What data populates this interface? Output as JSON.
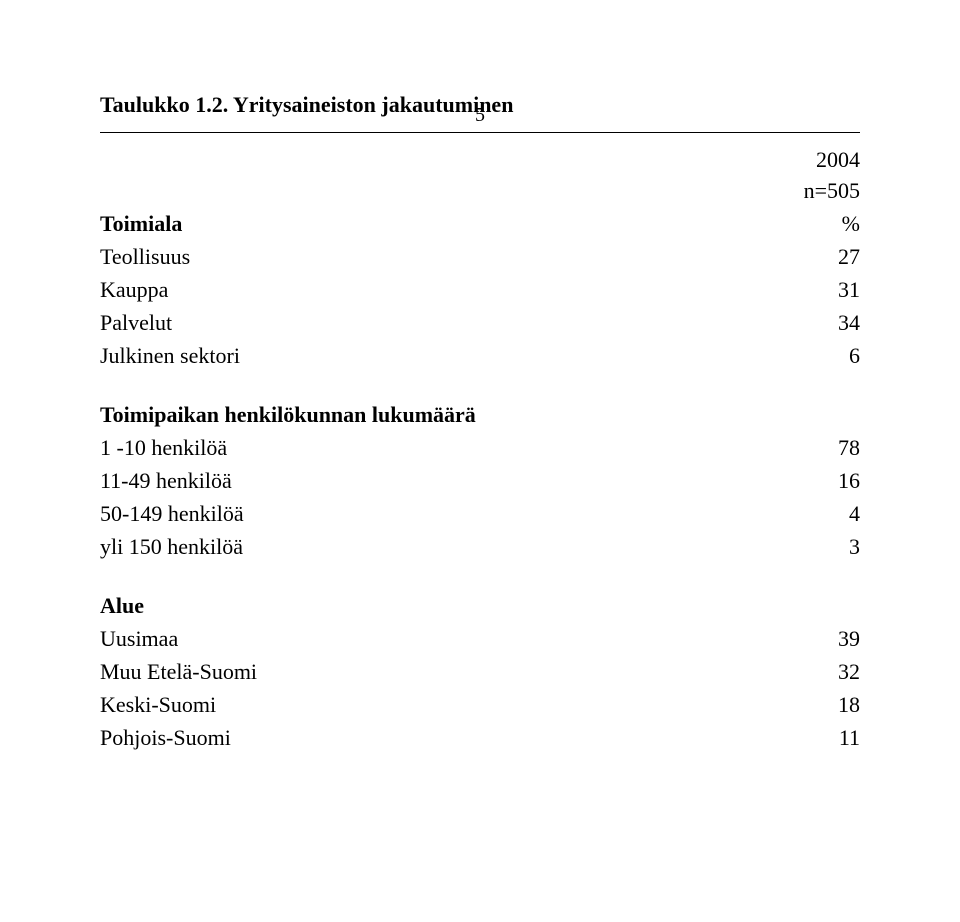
{
  "page_number": "5",
  "title": "Taulukko 1.2. Yritysaineiston jakautuminen",
  "header": {
    "year": "2004",
    "n": "n=505",
    "pct": "%"
  },
  "sections": {
    "toimiala": {
      "heading": "Toimiala",
      "rows": [
        {
          "label": "Teollisuus",
          "value": "27"
        },
        {
          "label": "Kauppa",
          "value": "31"
        },
        {
          "label": "Palvelut",
          "value": "34"
        },
        {
          "label": "Julkinen sektori",
          "value": "6"
        }
      ]
    },
    "toimipaikka": {
      "heading": "Toimipaikan henkilökunnan lukumäärä",
      "rows": [
        {
          "label": "1 -10 henkilöä",
          "value": "78"
        },
        {
          "label": "11-49 henkilöä",
          "value": "16"
        },
        {
          "label": "50-149 henkilöä",
          "value": "4"
        },
        {
          "label": "yli 150 henkilöä",
          "value": "3"
        }
      ]
    },
    "alue": {
      "heading": "Alue",
      "rows": [
        {
          "label": "Uusimaa",
          "value": "39"
        },
        {
          "label": "Muu Etelä-Suomi",
          "value": "32"
        },
        {
          "label": "Keski-Suomi",
          "value": "18"
        },
        {
          "label": "Pohjois-Suomi",
          "value": "11"
        }
      ]
    }
  }
}
